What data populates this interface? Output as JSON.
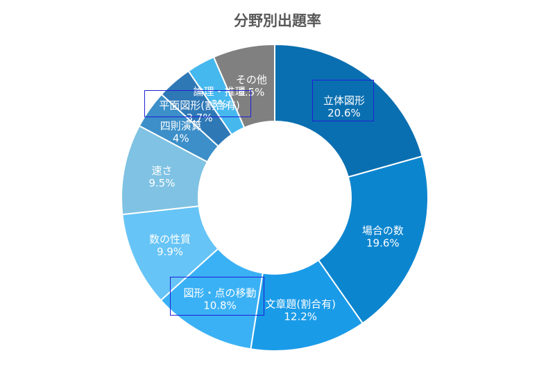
{
  "chart_data": {
    "type": "donut",
    "title": "分野別出題率",
    "legend": "none",
    "data_labels": "inside",
    "slices": [
      {
        "label": "立体図形",
        "value_label": "20.6%",
        "value": 20.6,
        "color": "#0a6fb0"
      },
      {
        "label": "場合の数",
        "value_label": "19.6%",
        "value": 19.6,
        "color": "#0c85cf"
      },
      {
        "label": "文章題(割合有)",
        "value_label": "12.2%",
        "value": 12.2,
        "color": "#1a9be8"
      },
      {
        "label": "図形・点の移動",
        "value_label": "10.8%",
        "value": 10.8,
        "color": "#3bb1f5"
      },
      {
        "label": "数の性質",
        "value_label": "9.9%",
        "value": 9.9,
        "color": "#66c4f6"
      },
      {
        "label": "速さ",
        "value_label": "9.5%",
        "value": 9.5,
        "color": "#7fc2e3"
      },
      {
        "label": "四則演算",
        "value_label": "4%",
        "value": 4.0,
        "color": "#3c8fc8"
      },
      {
        "label": "平面図形(割合有)",
        "value_label": "3.7%",
        "value": 3.7,
        "color": "#2f78b6"
      },
      {
        "label": "論理・推理",
        "value_label": "3%",
        "value": 3.0,
        "color": "#45b8ee"
      },
      {
        "label": "その他",
        "value_label": "6.5%",
        "value": 6.5,
        "color": "#808080"
      }
    ]
  }
}
